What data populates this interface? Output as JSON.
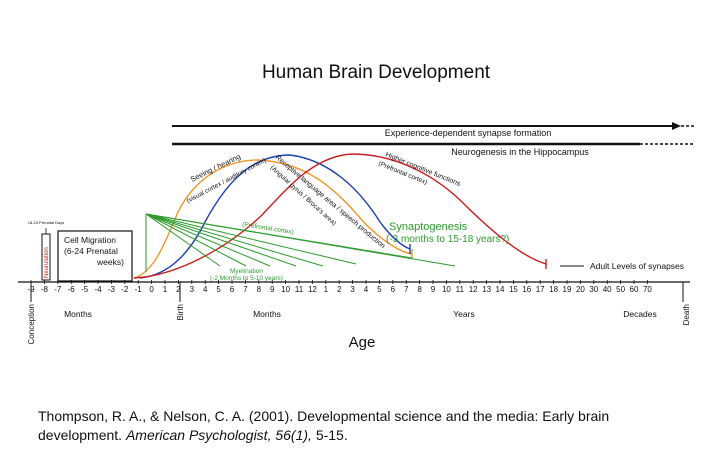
{
  "title": "Human Brain Development",
  "axis_ticks": [
    "-9",
    "-8",
    "-7",
    "-6",
    "-5",
    "-4",
    "-3",
    "-2",
    "-1",
    "0",
    "1",
    "2",
    "3",
    "4",
    "5",
    "6",
    "7",
    "8",
    "9",
    "10",
    "11",
    "12",
    "1",
    "2",
    "3",
    "4",
    "5",
    "6",
    "7",
    "8",
    "9",
    "10",
    "11",
    "12",
    "13",
    "14",
    "15",
    "16",
    "17",
    "18",
    "19",
    "20",
    "30",
    "40",
    "50",
    "60",
    "70"
  ],
  "markers": {
    "conception": "Conception",
    "birth": "Birth",
    "death": "Death"
  },
  "segment_labels": {
    "prenatal_months": "Months",
    "postnatal_months": "Months",
    "years": "Years",
    "decades": "Decades"
  },
  "axis_title": "Age",
  "bars": {
    "experience": "Experience-dependent synapse formation",
    "neurogenesis": "Neurogenesis in the Hippocampus"
  },
  "boxes": {
    "neurulation_days": "18-24 Prenatal Days",
    "neurulation": "Neurulation",
    "cell_migration_1": "Cell Migration",
    "cell_migration_2": "(6-24 Prenatal",
    "cell_migration_3": "weeks)"
  },
  "curves": {
    "seeing_hearing_1": "Seeing / hearing",
    "seeing_hearing_2": "(visual cortex / auditory cortex)",
    "receptive_1": "Receptive language area / speech production",
    "receptive_2": "(Angular gyrus / Broca's area)",
    "higher_1": "Higher cognitive functions",
    "higher_2": "(Prefrontal cortex)"
  },
  "synaptogenesis_1": "Synaptogenesis",
  "synaptogenesis_2": "(-3 months to 15-18 years?)",
  "prefrontal_label": "(Prefrontal cortex)",
  "myelination_1": "Myelination",
  "myelination_2": "(-2 Months to 5-10 years)",
  "adult_levels": "Adult Levels of synapses",
  "citation": {
    "authors": "Thompson, R. A., & Nelson, C. A. (2001).  Developmental science and the media: Early brain development.",
    "journal": "American Psychologist, 56(1),",
    "pages": "5-15."
  },
  "colors": {
    "orange": "#f0962a",
    "blue": "#1a3fb0",
    "red": "#c81e1e",
    "green": "#2e9a2e",
    "black": "#111111"
  }
}
